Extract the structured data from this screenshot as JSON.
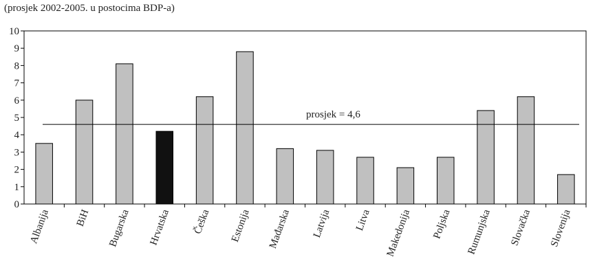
{
  "chart_data": {
    "type": "bar",
    "title": "",
    "subtitle": "(prosjek 2002-2005. u postocima BDP-a)",
    "xlabel": "",
    "ylabel": "",
    "ylim": [
      0,
      10
    ],
    "yticks": [
      0,
      1,
      2,
      3,
      4,
      5,
      6,
      7,
      8,
      9,
      10
    ],
    "categories": [
      "Albanija",
      "BiH",
      "Bugarska",
      "Hrvatska",
      "Češka",
      "Estonija",
      "Mađarska",
      "Latvija",
      "Litva",
      "Makedonija",
      "Poljska",
      "Rumunjska",
      "Slovačka",
      "Slovenija"
    ],
    "values": [
      3.5,
      6.0,
      8.1,
      4.2,
      6.2,
      8.8,
      3.2,
      3.1,
      2.7,
      2.1,
      2.7,
      5.4,
      6.2,
      1.7
    ],
    "highlight_category": "Hrvatska",
    "colors": {
      "bar": "#c0c0c0",
      "highlight": "#111111",
      "stroke": "#000000"
    },
    "grid": false,
    "average": {
      "value": 4.6,
      "label": "prosjek = 4,6"
    }
  }
}
